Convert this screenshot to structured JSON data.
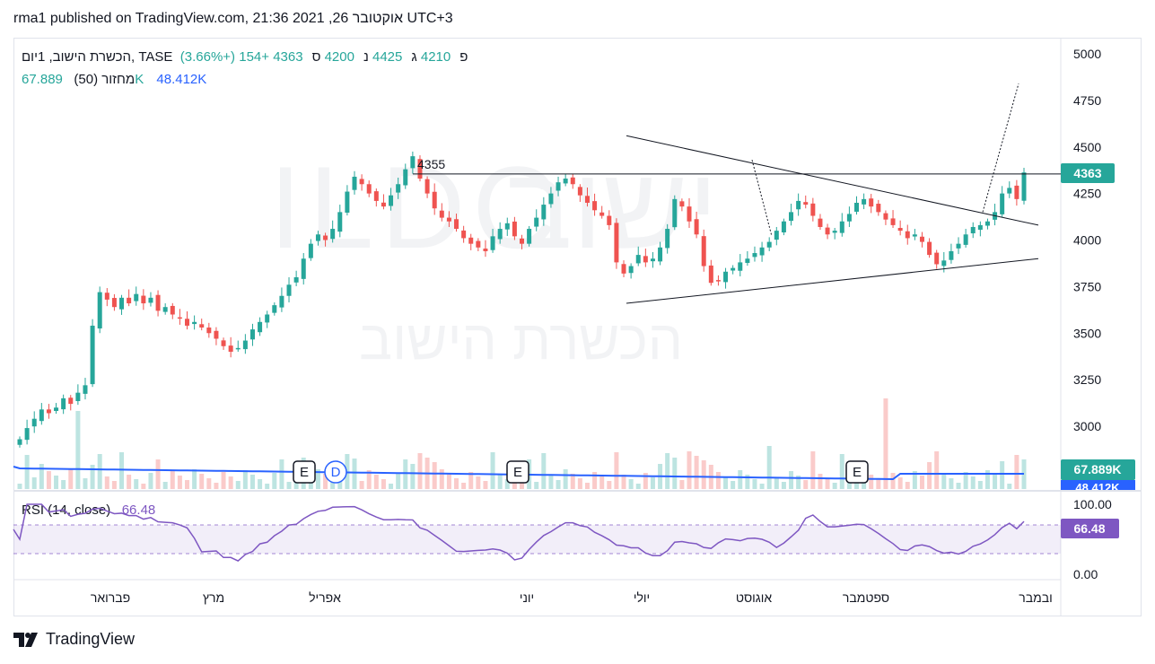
{
  "header": {
    "published_line": "rma1 published on TradingView.com, 21:36 2021 ,26 אוקטובר UTC+3"
  },
  "legend": {
    "symbol": "הכשרת הישוב, 1יום, TASE",
    "open_label": "פ",
    "open_value": "4210",
    "high_label": "ג",
    "high_value": "4425",
    "low_label": "נ",
    "low_value": "4200",
    "close_label": "ס",
    "close_value": "4363",
    "change": "+154 (+3.66%)",
    "volume_label": "מחזור (50)",
    "volume_value": "67.889K",
    "volume_ma_value": "48.412K"
  },
  "rsi_legend": {
    "label": "RSI (14, close)",
    "value": "66.48"
  },
  "watermark": {
    "ticker": "ILDC",
    "hebrew_large": "ישוב",
    "hebrew_name": "הכשרת הישוב"
  },
  "price_badge": "4363",
  "volume_badge": "67.889K",
  "volume_ma_badge": "48.412K",
  "rsi_badge": "66.48",
  "footer": {
    "brand": "TradingView"
  },
  "colors": {
    "up": "#26a69a",
    "down": "#ef5350",
    "volume_ma": "#2962ff",
    "rsi": "#7e57c2"
  },
  "chart_data": [
    {
      "type": "candlestick",
      "title": "הכשרת הישוב, 1יום, TASE",
      "y_ticks": [
        3000,
        3250,
        3500,
        3750,
        4000,
        4250,
        4500,
        4750,
        5000
      ],
      "y_tick_labels": [
        "3000",
        "3250",
        "3500",
        "3750",
        "4000",
        "4250",
        "4500",
        "4750",
        "5000"
      ],
      "ylim": [
        2880,
        5060
      ],
      "x_labels": [
        "פברואר",
        "מרץ",
        "אפריל",
        "יוני",
        "יולי",
        "אוגוסט",
        "ספטמבר",
        "ובמבר"
      ],
      "close_series": [
        2930,
        2990,
        3040,
        3090,
        3070,
        3100,
        3150,
        3120,
        3180,
        3220,
        3540,
        3720,
        3680,
        3640,
        3690,
        3660,
        3710,
        3660,
        3690,
        3620,
        3640,
        3600,
        3580,
        3540,
        3560,
        3530,
        3500,
        3470,
        3430,
        3400,
        3420,
        3460,
        3520,
        3560,
        3600,
        3650,
        3700,
        3760,
        3800,
        3900,
        3980,
        4030,
        4000,
        4060,
        4150,
        4260,
        4340,
        4300,
        4250,
        4210,
        4180,
        4240,
        4300,
        4380,
        4450,
        4330,
        4250,
        4170,
        4120,
        4100,
        4060,
        4010,
        3980,
        3960,
        3940,
        4020,
        4060,
        4090,
        4020,
        3980,
        4060,
        4120,
        4190,
        4250,
        4310,
        4330,
        4300,
        4240,
        4200,
        4160,
        4130,
        4080,
        3880,
        3820,
        3860,
        3920,
        3880,
        3900,
        3960,
        4060,
        4220,
        4180,
        4100,
        4030,
        3860,
        3770,
        3780,
        3830,
        3850,
        3880,
        3900,
        3930,
        3960,
        3990,
        4050,
        4100,
        4150,
        4210,
        4190,
        4130,
        4070,
        4030,
        4050,
        4100,
        4140,
        4200,
        4220,
        4180,
        4150,
        4110,
        4080,
        4050,
        4010,
        4030,
        3990,
        3920,
        3870,
        3890,
        3940,
        3980,
        4030,
        4070,
        4080,
        4100,
        4150,
        4250,
        4280,
        4220,
        4363
      ],
      "annotations": [
        {
          "type": "horizontal_line",
          "value": 4355,
          "label": "4355"
        },
        {
          "type": "trend_line",
          "name": "upper triangle line",
          "from": 4560,
          "to": 4080
        },
        {
          "type": "trend_line",
          "name": "lower triangle line",
          "from": 3660,
          "to": 3900
        }
      ],
      "event_markers": [
        "E",
        "D",
        "E",
        "E"
      ]
    },
    {
      "type": "bar",
      "name": "מחזור (50)",
      "last_value": "67.889K",
      "ma_value": "48.412K"
    },
    {
      "type": "line",
      "name": "RSI (14, close)",
      "y_ticks": [
        0,
        100
      ],
      "y_tick_labels": [
        "0.00",
        "100.00"
      ],
      "band": [
        30,
        70
      ],
      "ylim": [
        0,
        100
      ],
      "last_value": 66.48
    }
  ]
}
